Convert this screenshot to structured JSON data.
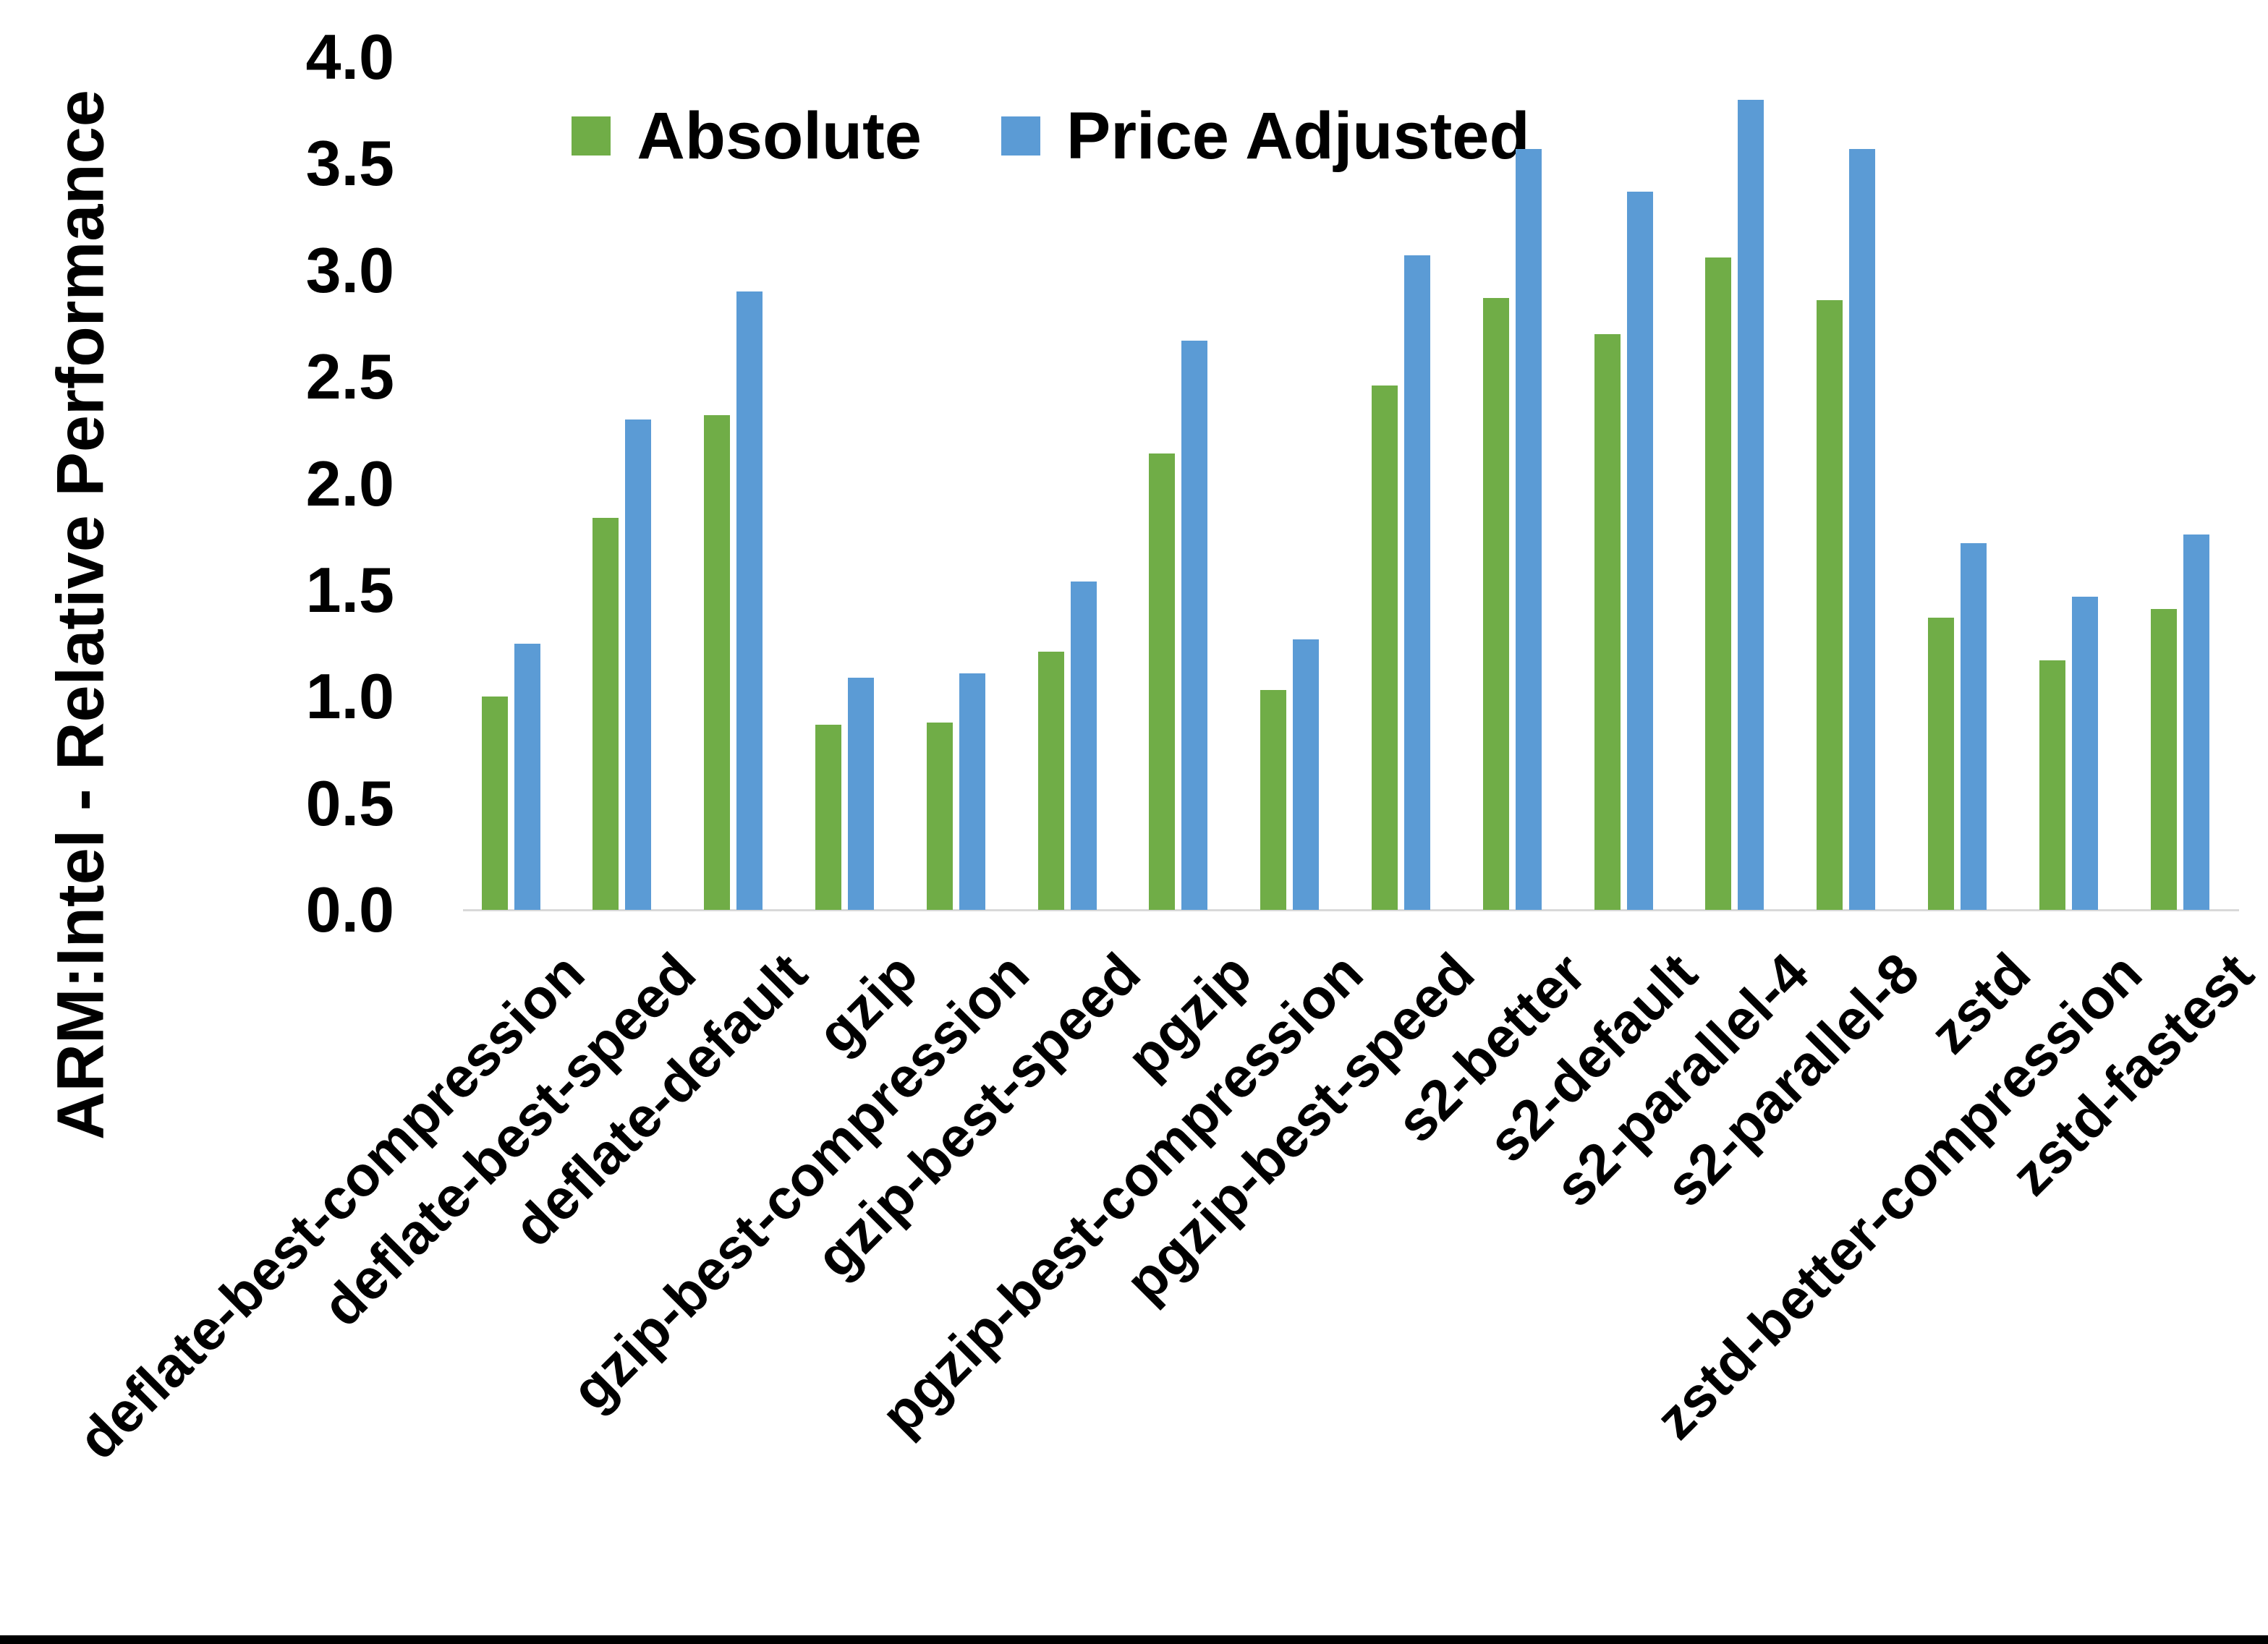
{
  "chart_data": {
    "type": "bar",
    "title": "",
    "xlabel": "",
    "ylabel": "ARM:Intel - Relative Performance",
    "ylim": [
      0.0,
      4.0
    ],
    "ytick_step": 0.5,
    "yticks": [
      "0.0",
      "0.5",
      "1.0",
      "1.5",
      "2.0",
      "2.5",
      "3.0",
      "3.5",
      "4.0"
    ],
    "grid": false,
    "legend_position": "top-center",
    "categories": [
      "deflate-best-compression",
      "deflate-best-speed",
      "deflate-default",
      "gzip",
      "gzip-best-compression",
      "gzip-best-speed",
      "pgzip",
      "pgzip-best-compression",
      "pgzip-best-speed",
      "s2-better",
      "s2-default",
      "s2-parallel-4",
      "s2-parallel-8",
      "zstd",
      "zstd-better-compression",
      "zstd-fastest"
    ],
    "series": [
      {
        "name": "Absolute",
        "color": "#70AD47",
        "values": [
          1.0,
          1.84,
          2.32,
          0.87,
          0.88,
          1.21,
          2.14,
          1.03,
          2.46,
          2.87,
          2.7,
          3.06,
          2.86,
          1.37,
          1.17,
          1.41
        ]
      },
      {
        "name": "Price Adjusted",
        "color": "#5B9BD5",
        "values": [
          1.25,
          2.3,
          2.9,
          1.09,
          1.11,
          1.54,
          2.67,
          1.27,
          3.07,
          3.57,
          3.37,
          3.8,
          3.57,
          1.72,
          1.47,
          1.76
        ]
      }
    ],
    "axis_line_color": "#D9D9D9",
    "text_color": "#000000",
    "background": "#FFFFFF",
    "bottom_border_color": "#000000"
  }
}
